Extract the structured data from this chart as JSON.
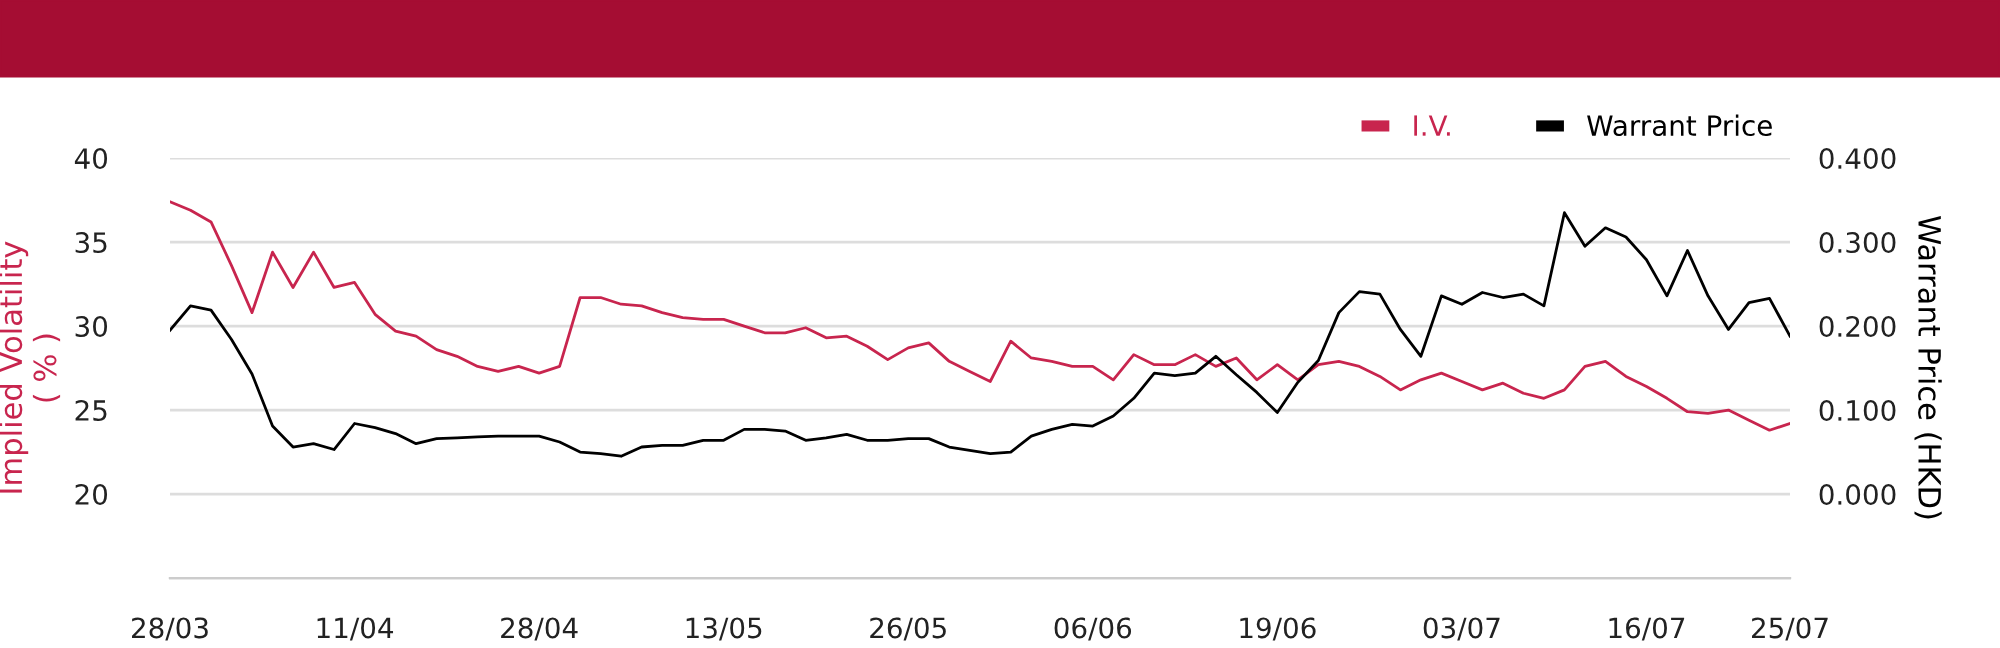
{
  "chart_data": {
    "type": "line",
    "categories": [
      "28/03",
      null,
      null,
      null,
      null,
      null,
      null,
      null,
      null,
      "11/04",
      null,
      null,
      null,
      null,
      null,
      null,
      null,
      null,
      "28/04",
      null,
      null,
      null,
      null,
      null,
      null,
      null,
      null,
      "13/05",
      null,
      null,
      null,
      null,
      null,
      null,
      null,
      null,
      "26/05",
      null,
      null,
      null,
      null,
      null,
      null,
      null,
      null,
      "06/06",
      null,
      null,
      null,
      null,
      null,
      null,
      null,
      null,
      "19/06",
      null,
      null,
      null,
      null,
      null,
      null,
      null,
      null,
      "03/07",
      null,
      null,
      null,
      null,
      null,
      null,
      null,
      null,
      "16/07",
      null,
      null,
      null,
      null,
      null,
      null,
      "25/07"
    ],
    "series": [
      {
        "name": "I.V.",
        "color": "#c8254e",
        "values": [
          37.4,
          36.9,
          36.2,
          33.6,
          30.8,
          34.4,
          32.3,
          34.4,
          32.3,
          32.6,
          30.7,
          29.7,
          29.4,
          28.6,
          28.2,
          27.6,
          27.3,
          27.6,
          27.2,
          27.6,
          31.7,
          31.7,
          31.3,
          31.2,
          30.8,
          30.5,
          30.4,
          30.4,
          30.0,
          29.6,
          29.6,
          29.9,
          29.3,
          29.4,
          28.8,
          28.0,
          28.7,
          29.0,
          27.9,
          27.3,
          26.7,
          29.1,
          28.1,
          27.9,
          27.6,
          27.6,
          26.8,
          28.3,
          27.7,
          27.7,
          28.3,
          27.6,
          28.1,
          26.8,
          27.7,
          26.8,
          27.7,
          27.9,
          27.6,
          27.0,
          26.2,
          26.8,
          27.2,
          26.7,
          26.2,
          26.6,
          26.0,
          25.7,
          26.2,
          27.6,
          27.9,
          27.0,
          26.4,
          25.7,
          24.9,
          24.8,
          25.0,
          24.4,
          23.8,
          24.2
        ]
      },
      {
        "name": "Warrant Price",
        "color": "#000000",
        "axis": "y2",
        "values": [
          0.195,
          0.224,
          0.219,
          0.184,
          0.143,
          0.081,
          0.056,
          0.06,
          0.053,
          0.084,
          0.079,
          0.072,
          0.06,
          0.066,
          0.067,
          0.068,
          0.069,
          0.069,
          0.069,
          0.062,
          0.05,
          0.048,
          0.045,
          0.056,
          0.058,
          0.058,
          0.064,
          0.064,
          0.077,
          0.077,
          0.075,
          0.064,
          0.067,
          0.071,
          0.064,
          0.064,
          0.066,
          0.066,
          0.056,
          0.052,
          0.048,
          0.05,
          0.069,
          0.077,
          0.083,
          0.081,
          0.093,
          0.114,
          0.144,
          0.141,
          0.144,
          0.164,
          0.142,
          0.121,
          0.097,
          0.133,
          0.159,
          0.216,
          0.241,
          0.238,
          0.196,
          0.164,
          0.236,
          0.226,
          0.24,
          0.234,
          0.238,
          0.224,
          0.335,
          0.295,
          0.317,
          0.306,
          0.279,
          0.236,
          0.29,
          0.236,
          0.196,
          0.228,
          0.233,
          0.188
        ]
      }
    ],
    "ylabel": "Implied Volatility\n( % )",
    "y2label": "Warrant Price (HKD)",
    "ylim": [
      15,
      40
    ],
    "yticks": [
      20,
      25,
      30,
      35,
      40
    ],
    "y2lim": [
      -0.1,
      0.4
    ],
    "y2ticks": [
      {
        "value": 0,
        "label": "0.000"
      },
      {
        "value": 0.1,
        "label": "0.100"
      },
      {
        "value": 0.2,
        "label": "0.200"
      },
      {
        "value": 0.3,
        "label": "0.300"
      },
      {
        "value": 0.4,
        "label": "0.400"
      }
    ],
    "grid": "y",
    "legend": "top right"
  }
}
